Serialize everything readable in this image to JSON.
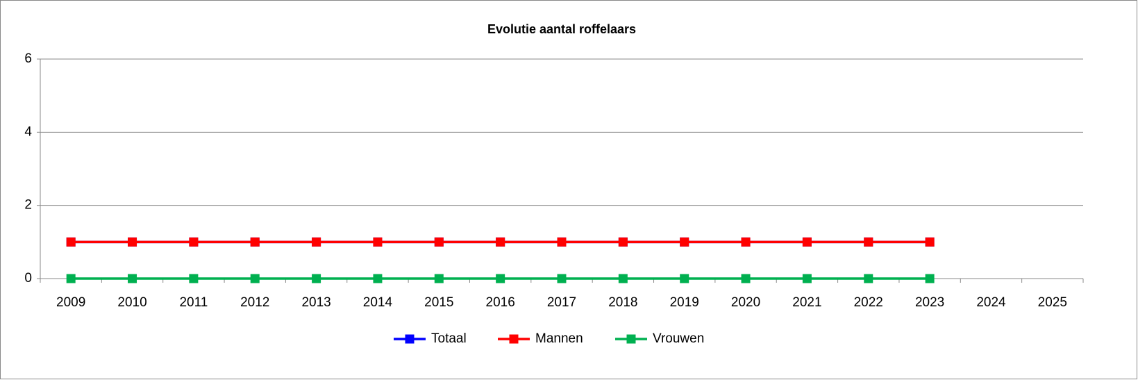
{
  "chart_data": {
    "type": "line",
    "title": "Evolutie aantal roffelaars",
    "categories": [
      "2009",
      "2010",
      "2011",
      "2012",
      "2013",
      "2014",
      "2015",
      "2016",
      "2017",
      "2018",
      "2019",
      "2020",
      "2021",
      "2022",
      "2023",
      "2024",
      "2025"
    ],
    "series": [
      {
        "name": "Totaal",
        "color": "#0000ff",
        "values": [
          1,
          1,
          1,
          1,
          1,
          1,
          1,
          1,
          1,
          1,
          1,
          1,
          1,
          1,
          1,
          null,
          null
        ]
      },
      {
        "name": "Mannen",
        "color": "#ff0000",
        "values": [
          1,
          1,
          1,
          1,
          1,
          1,
          1,
          1,
          1,
          1,
          1,
          1,
          1,
          1,
          1,
          null,
          null
        ]
      },
      {
        "name": "Vrouwen",
        "color": "#00b050",
        "values": [
          0,
          0,
          0,
          0,
          0,
          0,
          0,
          0,
          0,
          0,
          0,
          0,
          0,
          0,
          0,
          null,
          null
        ]
      }
    ],
    "ylim": [
      0,
      6
    ],
    "yticks": [
      0,
      2,
      4,
      6
    ],
    "grid": true,
    "legend": "bottom"
  }
}
